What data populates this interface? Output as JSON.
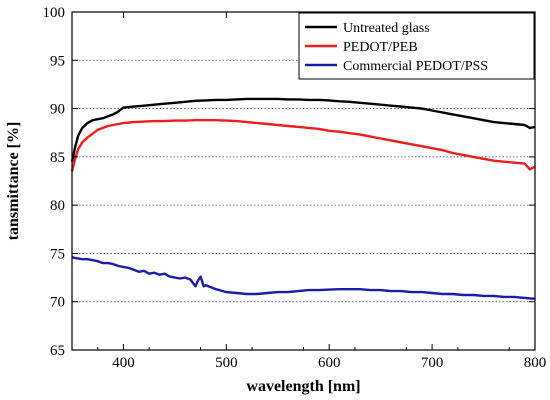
{
  "chart_data": {
    "type": "line",
    "title": "",
    "xlabel": "wavelength [nm]",
    "ylabel": "tansmittance [%]",
    "xlim": [
      350,
      800
    ],
    "ylim": [
      65,
      100
    ],
    "xticks": [
      400,
      500,
      600,
      700,
      800
    ],
    "yticks": [
      65,
      70,
      75,
      80,
      85,
      90,
      95,
      100
    ],
    "grid": "horizontal dotted",
    "legend_position": "top-right",
    "series": [
      {
        "name": "Untreated glass",
        "color": "#000000",
        "x": [
          350,
          353,
          356,
          360,
          365,
          370,
          375,
          380,
          385,
          390,
          395,
          400,
          410,
          420,
          430,
          440,
          450,
          460,
          470,
          480,
          490,
          500,
          510,
          520,
          530,
          540,
          550,
          560,
          570,
          580,
          590,
          600,
          610,
          620,
          630,
          640,
          650,
          660,
          670,
          680,
          690,
          700,
          710,
          720,
          730,
          740,
          750,
          760,
          770,
          780,
          790,
          795,
          800
        ],
        "y": [
          84.5,
          86.0,
          87.2,
          88.0,
          88.5,
          88.8,
          88.9,
          89.0,
          89.2,
          89.4,
          89.7,
          90.1,
          90.2,
          90.3,
          90.4,
          90.5,
          90.6,
          90.7,
          90.8,
          90.85,
          90.9,
          90.9,
          90.95,
          91.0,
          91.0,
          91.0,
          91.0,
          90.95,
          90.95,
          90.9,
          90.9,
          90.85,
          90.75,
          90.7,
          90.6,
          90.5,
          90.4,
          90.3,
          90.2,
          90.1,
          90.0,
          89.8,
          89.6,
          89.4,
          89.2,
          89.0,
          88.8,
          88.6,
          88.5,
          88.4,
          88.3,
          88.0,
          88.1
        ]
      },
      {
        "name": "PEDOT/PEB",
        "color": "#ee1c1c",
        "x": [
          350,
          353,
          356,
          360,
          365,
          370,
          375,
          380,
          385,
          390,
          395,
          400,
          410,
          420,
          430,
          440,
          450,
          460,
          470,
          480,
          490,
          500,
          510,
          520,
          530,
          540,
          550,
          560,
          570,
          580,
          590,
          600,
          610,
          620,
          630,
          640,
          650,
          660,
          670,
          680,
          690,
          700,
          710,
          720,
          730,
          740,
          750,
          760,
          770,
          780,
          790,
          795,
          800
        ],
        "y": [
          83.5,
          84.8,
          85.8,
          86.5,
          87.0,
          87.4,
          87.8,
          88.0,
          88.2,
          88.3,
          88.4,
          88.5,
          88.6,
          88.65,
          88.7,
          88.7,
          88.75,
          88.75,
          88.8,
          88.8,
          88.8,
          88.75,
          88.7,
          88.6,
          88.5,
          88.4,
          88.3,
          88.2,
          88.1,
          88.0,
          87.9,
          87.7,
          87.6,
          87.45,
          87.3,
          87.1,
          86.9,
          86.7,
          86.5,
          86.3,
          86.1,
          85.9,
          85.7,
          85.4,
          85.2,
          85.0,
          84.8,
          84.6,
          84.5,
          84.4,
          84.3,
          83.7,
          84.0
        ]
      },
      {
        "name": "Commercial PEDOT/PSS",
        "color": "#1c1ca8",
        "x": [
          350,
          355,
          360,
          365,
          370,
          375,
          380,
          385,
          390,
          395,
          400,
          405,
          410,
          415,
          420,
          425,
          430,
          435,
          440,
          445,
          450,
          455,
          460,
          465,
          470,
          472,
          475,
          478,
          480,
          485,
          490,
          500,
          510,
          520,
          530,
          540,
          550,
          560,
          570,
          580,
          590,
          600,
          610,
          620,
          630,
          640,
          650,
          660,
          670,
          680,
          690,
          700,
          710,
          720,
          730,
          740,
          750,
          760,
          770,
          780,
          790,
          800
        ],
        "y": [
          74.6,
          74.5,
          74.4,
          74.4,
          74.3,
          74.2,
          74.0,
          74.0,
          73.9,
          73.7,
          73.6,
          73.5,
          73.3,
          73.1,
          73.2,
          72.9,
          73.0,
          72.8,
          72.9,
          72.6,
          72.5,
          72.4,
          72.5,
          72.3,
          71.6,
          72.1,
          72.6,
          71.6,
          71.7,
          71.5,
          71.3,
          71.0,
          70.9,
          70.8,
          70.8,
          70.9,
          71.0,
          71.0,
          71.1,
          71.2,
          71.2,
          71.25,
          71.3,
          71.3,
          71.3,
          71.2,
          71.2,
          71.1,
          71.1,
          71.0,
          71.0,
          70.9,
          70.8,
          70.8,
          70.7,
          70.7,
          70.6,
          70.6,
          70.5,
          70.5,
          70.4,
          70.3
        ]
      }
    ]
  }
}
